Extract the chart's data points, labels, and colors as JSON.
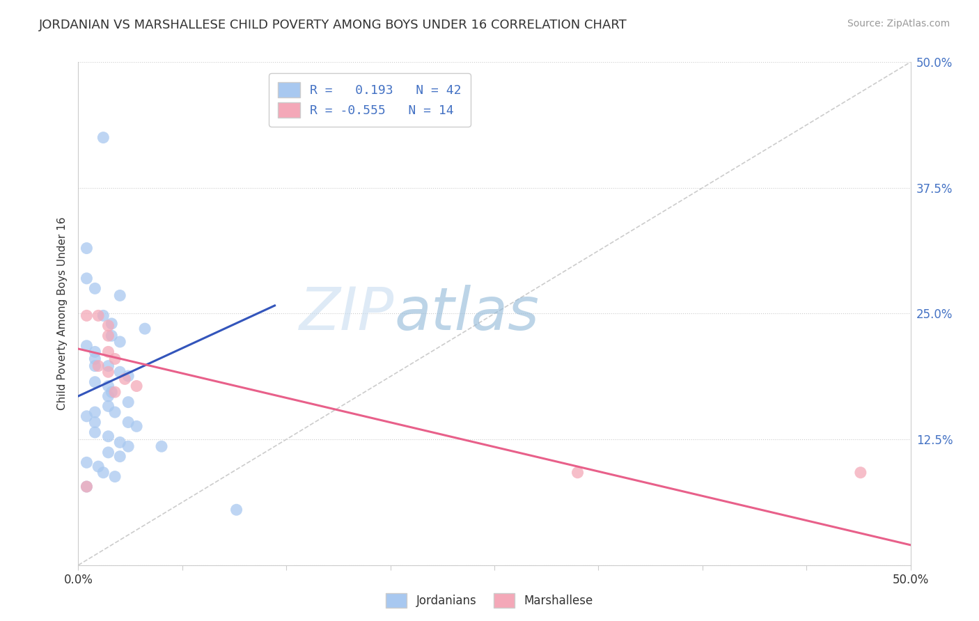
{
  "title": "JORDANIAN VS MARSHALLESE CHILD POVERTY AMONG BOYS UNDER 16 CORRELATION CHART",
  "source": "Source: ZipAtlas.com",
  "ylabel": "Child Poverty Among Boys Under 16",
  "xlim": [
    0,
    0.5
  ],
  "ylim": [
    0,
    0.5
  ],
  "legend_r_jordan": "0.193",
  "legend_n_jordan": "42",
  "legend_r_marsh": "-0.555",
  "legend_n_marsh": "14",
  "jordan_color": "#a8c8f0",
  "marsh_color": "#f4a8b8",
  "jordan_line_color": "#3355bb",
  "marsh_line_color": "#e8608a",
  "jordan_line": [
    [
      0.0,
      0.168
    ],
    [
      0.118,
      0.258
    ]
  ],
  "marsh_line": [
    [
      0.0,
      0.215
    ],
    [
      0.5,
      0.02
    ]
  ],
  "jordanians_scatter": [
    [
      0.015,
      0.425
    ],
    [
      0.005,
      0.315
    ],
    [
      0.005,
      0.285
    ],
    [
      0.01,
      0.275
    ],
    [
      0.025,
      0.268
    ],
    [
      0.015,
      0.248
    ],
    [
      0.02,
      0.24
    ],
    [
      0.04,
      0.235
    ],
    [
      0.02,
      0.228
    ],
    [
      0.025,
      0.222
    ],
    [
      0.005,
      0.218
    ],
    [
      0.01,
      0.212
    ],
    [
      0.01,
      0.205
    ],
    [
      0.01,
      0.198
    ],
    [
      0.018,
      0.198
    ],
    [
      0.025,
      0.192
    ],
    [
      0.03,
      0.188
    ],
    [
      0.01,
      0.182
    ],
    [
      0.018,
      0.178
    ],
    [
      0.02,
      0.172
    ],
    [
      0.018,
      0.168
    ],
    [
      0.03,
      0.162
    ],
    [
      0.018,
      0.158
    ],
    [
      0.01,
      0.152
    ],
    [
      0.022,
      0.152
    ],
    [
      0.005,
      0.148
    ],
    [
      0.01,
      0.142
    ],
    [
      0.03,
      0.142
    ],
    [
      0.035,
      0.138
    ],
    [
      0.01,
      0.132
    ],
    [
      0.018,
      0.128
    ],
    [
      0.025,
      0.122
    ],
    [
      0.03,
      0.118
    ],
    [
      0.05,
      0.118
    ],
    [
      0.018,
      0.112
    ],
    [
      0.025,
      0.108
    ],
    [
      0.005,
      0.102
    ],
    [
      0.012,
      0.098
    ],
    [
      0.015,
      0.092
    ],
    [
      0.022,
      0.088
    ],
    [
      0.005,
      0.078
    ],
    [
      0.095,
      0.055
    ]
  ],
  "marshallese_scatter": [
    [
      0.005,
      0.248
    ],
    [
      0.012,
      0.248
    ],
    [
      0.018,
      0.238
    ],
    [
      0.018,
      0.228
    ],
    [
      0.018,
      0.212
    ],
    [
      0.022,
      0.205
    ],
    [
      0.012,
      0.198
    ],
    [
      0.018,
      0.192
    ],
    [
      0.028,
      0.185
    ],
    [
      0.035,
      0.178
    ],
    [
      0.022,
      0.172
    ],
    [
      0.005,
      0.078
    ],
    [
      0.3,
      0.092
    ],
    [
      0.47,
      0.092
    ]
  ]
}
